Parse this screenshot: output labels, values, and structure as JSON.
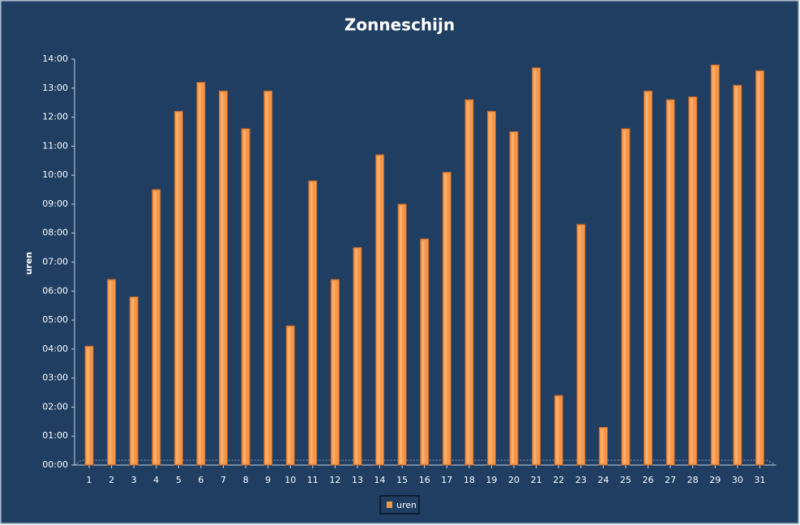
{
  "chart_data": {
    "type": "bar",
    "title": "Zonneschijn",
    "y_label": "uren",
    "categories": [
      "1",
      "2",
      "3",
      "4",
      "5",
      "6",
      "7",
      "8",
      "9",
      "10",
      "11",
      "12",
      "13",
      "14",
      "15",
      "16",
      "17",
      "18",
      "19",
      "20",
      "21",
      "22",
      "23",
      "24",
      "25",
      "26",
      "27",
      "28",
      "29",
      "30",
      "31"
    ],
    "series": [
      {
        "name": "uren",
        "color": "#f79646",
        "values": [
          4.1,
          6.4,
          5.8,
          9.5,
          12.2,
          13.2,
          12.9,
          11.6,
          12.9,
          4.8,
          9.8,
          6.4,
          7.5,
          10.7,
          9.0,
          7.8,
          10.1,
          12.6,
          12.2,
          11.5,
          13.7,
          2.4,
          8.3,
          1.3,
          11.6,
          12.9,
          12.6,
          12.7,
          13.8,
          13.1,
          13.6
        ]
      }
    ],
    "ylim": [
      0,
      14
    ],
    "yticks": [
      {
        "value": 0,
        "label": "00:00"
      },
      {
        "value": 1,
        "label": "01:00"
      },
      {
        "value": 2,
        "label": "02:00"
      },
      {
        "value": 3,
        "label": "03:00"
      },
      {
        "value": 4,
        "label": "04:00"
      },
      {
        "value": 5,
        "label": "05:00"
      },
      {
        "value": 6,
        "label": "06:00"
      },
      {
        "value": 7,
        "label": "07:00"
      },
      {
        "value": 8,
        "label": "08:00"
      },
      {
        "value": 9,
        "label": "09:00"
      },
      {
        "value": 10,
        "label": "10:00"
      },
      {
        "value": 11,
        "label": "11:00"
      },
      {
        "value": 12,
        "label": "12:00"
      },
      {
        "value": 13,
        "label": "13:00"
      },
      {
        "value": 14,
        "label": "14:00"
      }
    ],
    "grid": false,
    "legend": "bottom"
  }
}
